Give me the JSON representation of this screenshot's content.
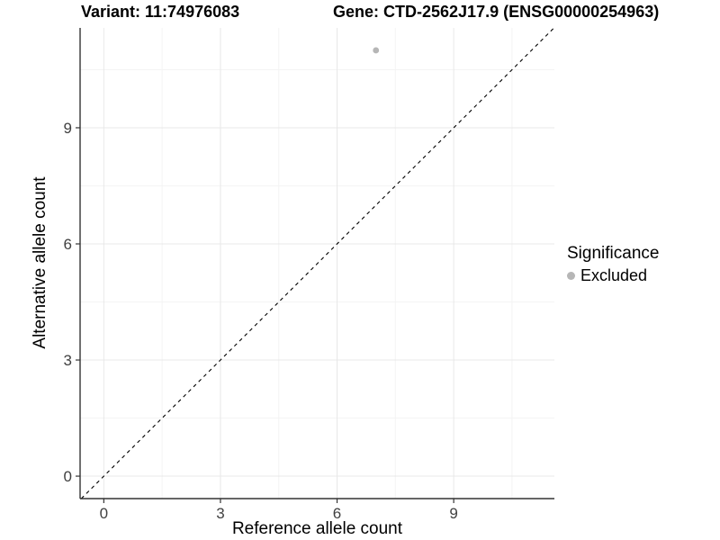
{
  "figure": {
    "title_variant": "Variant: 11:74976083",
    "title_gene": "Gene: CTD-2562J17.9 (ENSG00000254963)"
  },
  "chart_data": {
    "type": "scatter",
    "title": "Variant: 11:74976083 | Gene: CTD-2562J17.9 (ENSG00000254963)",
    "xlabel": "Reference allele count",
    "ylabel": "Alternative allele count",
    "xlim": [
      -0.61,
      11.59
    ],
    "ylim": [
      -0.58,
      11.58
    ],
    "x_ticks": [
      0,
      3,
      6,
      9
    ],
    "y_ticks": [
      0,
      3,
      6,
      9
    ],
    "x_minor_ticks": [
      1.5,
      4.5,
      7.5,
      10.5
    ],
    "y_minor_ticks": [
      1.5,
      4.5,
      7.5,
      10.5
    ],
    "grid": "on",
    "series": [
      {
        "name": "Excluded",
        "color": "#b6b6b6",
        "point_radius": 3.4,
        "points": [
          {
            "x": 7,
            "y": 11
          }
        ]
      }
    ],
    "reference_line": {
      "slope": 1,
      "intercept": 0,
      "style": "dashed",
      "color": "#000000"
    },
    "legend": {
      "title": "Significance",
      "position": "right",
      "items": [
        {
          "label": "Excluded",
          "color": "#b6b6b6"
        }
      ]
    },
    "colors": {
      "background": "#ffffff",
      "grid_major": "#e8e8e8",
      "grid_minor": "#f4f4f4",
      "axis_line": "#333333",
      "tick_mark": "#333333",
      "tick_label": "#404040"
    }
  }
}
